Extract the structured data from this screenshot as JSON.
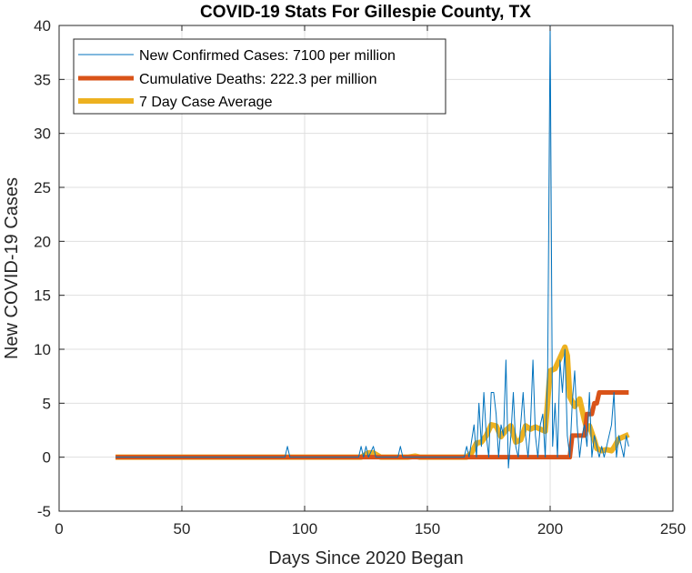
{
  "chart_data": {
    "type": "line",
    "title": "COVID-19 Stats For Gillespie County, TX",
    "xlabel": "Days Since 2020 Began",
    "ylabel": "New COVID-19 Cases",
    "xlim": [
      0,
      250
    ],
    "ylim": [
      -5,
      40
    ],
    "xticks": [
      0,
      50,
      100,
      150,
      200,
      250
    ],
    "yticks": [
      -5,
      0,
      5,
      10,
      15,
      20,
      25,
      30,
      35,
      40
    ],
    "grid": true,
    "legend_position": "top-left",
    "series": [
      {
        "name": "New Confirmed Cases: 7100 per million",
        "color": "#0072BD",
        "points": [
          [
            23,
            0
          ],
          [
            92,
            0
          ],
          [
            93,
            1
          ],
          [
            94,
            0
          ],
          [
            122,
            0
          ],
          [
            123,
            1
          ],
          [
            124,
            0
          ],
          [
            125,
            1
          ],
          [
            126,
            0
          ],
          [
            128,
            1
          ],
          [
            129,
            0
          ],
          [
            138,
            0
          ],
          [
            139,
            1
          ],
          [
            140,
            0
          ],
          [
            165,
            0
          ],
          [
            166,
            1
          ],
          [
            167,
            0
          ],
          [
            169,
            3
          ],
          [
            170,
            0
          ],
          [
            171,
            5
          ],
          [
            172,
            1
          ],
          [
            173,
            6
          ],
          [
            174,
            2
          ],
          [
            175,
            0
          ],
          [
            176,
            6
          ],
          [
            177,
            6
          ],
          [
            178,
            4
          ],
          [
            179,
            0
          ],
          [
            180,
            3
          ],
          [
            181,
            2
          ],
          [
            182,
            9
          ],
          [
            183,
            -1
          ],
          [
            184,
            2
          ],
          [
            185,
            6
          ],
          [
            186,
            1
          ],
          [
            187,
            0
          ],
          [
            188,
            3
          ],
          [
            189,
            6
          ],
          [
            190,
            2
          ],
          [
            191,
            0
          ],
          [
            192,
            3
          ],
          [
            193,
            9
          ],
          [
            194,
            2
          ],
          [
            195,
            0
          ],
          [
            196,
            3
          ],
          [
            197,
            4
          ],
          [
            198,
            0
          ],
          [
            199,
            8
          ],
          [
            200,
            40
          ],
          [
            201,
            1
          ],
          [
            202,
            5
          ],
          [
            203,
            0
          ],
          [
            204,
            9
          ],
          [
            205,
            6
          ],
          [
            206,
            10
          ],
          [
            207,
            2
          ],
          [
            208,
            0
          ],
          [
            209,
            5
          ],
          [
            210,
            8
          ],
          [
            211,
            3
          ],
          [
            212,
            0
          ],
          [
            213,
            2
          ],
          [
            214,
            3
          ],
          [
            215,
            1
          ],
          [
            216,
            6
          ],
          [
            217,
            0
          ],
          [
            218,
            2
          ],
          [
            219,
            1
          ],
          [
            220,
            0
          ],
          [
            221,
            1
          ],
          [
            222,
            0
          ],
          [
            223,
            1
          ],
          [
            224,
            2
          ],
          [
            225,
            3
          ],
          [
            226,
            6
          ],
          [
            227,
            0
          ],
          [
            228,
            2
          ],
          [
            229,
            1
          ],
          [
            230,
            0
          ],
          [
            231,
            2
          ],
          [
            232,
            1
          ]
        ]
      },
      {
        "name": "Cumulative Deaths: 222.3 per million",
        "color": "#D95319",
        "points": [
          [
            23,
            0
          ],
          [
            208,
            0
          ],
          [
            209,
            2
          ],
          [
            214,
            2
          ],
          [
            215,
            4
          ],
          [
            217,
            4
          ],
          [
            218,
            5
          ],
          [
            219,
            5
          ],
          [
            220,
            6
          ],
          [
            232,
            6
          ]
        ]
      },
      {
        "name": "7 Day Case Average",
        "color": "#EDB120",
        "points": [
          [
            23,
            0
          ],
          [
            123,
            0
          ],
          [
            126,
            0.4
          ],
          [
            128,
            0.4
          ],
          [
            131,
            0
          ],
          [
            142,
            0
          ],
          [
            145,
            0.1
          ],
          [
            147,
            0
          ],
          [
            166,
            0
          ],
          [
            168,
            0.4
          ],
          [
            170,
            1.3
          ],
          [
            172,
            1.4
          ],
          [
            174,
            2.0
          ],
          [
            176,
            3.0
          ],
          [
            178,
            2.9
          ],
          [
            180,
            1.9
          ],
          [
            182,
            2.5
          ],
          [
            184,
            2.9
          ],
          [
            186,
            1.4
          ],
          [
            188,
            1.6
          ],
          [
            190,
            2.9
          ],
          [
            192,
            2.6
          ],
          [
            194,
            2.8
          ],
          [
            196,
            2.6
          ],
          [
            198,
            2.4
          ],
          [
            200,
            8.0
          ],
          [
            202,
            8.2
          ],
          [
            204,
            9.2
          ],
          [
            206,
            10.2
          ],
          [
            207,
            9.4
          ],
          [
            208,
            5.6
          ],
          [
            210,
            4.7
          ],
          [
            212,
            5.4
          ],
          [
            214,
            3.4
          ],
          [
            215,
            2.6
          ],
          [
            216,
            2.9
          ],
          [
            218,
            1.6
          ],
          [
            219,
            0.8
          ],
          [
            221,
            0.6
          ],
          [
            223,
            0.7
          ],
          [
            225,
            0.6
          ],
          [
            226,
            0.9
          ],
          [
            228,
            1.7
          ],
          [
            230,
            1.9
          ],
          [
            232,
            2.1
          ]
        ]
      }
    ]
  }
}
